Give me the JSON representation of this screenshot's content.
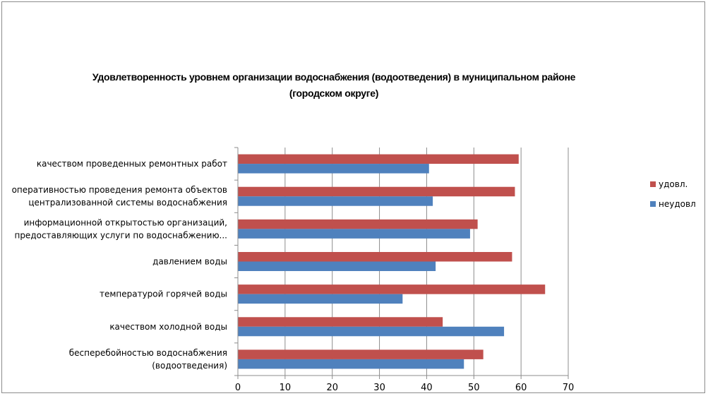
{
  "chart_data": {
    "type": "bar",
    "orientation": "horizontal",
    "title": "Удовлетворенность уровнем организации водоснабжения (водоотведения) в муниципальном районе (городском округе)",
    "title_lines": [
      "Удовлетворенность уровнем организации водоснабжения (водоотведения) в муниципальном районе",
      "(городском округе)"
    ],
    "categories": [
      [
        "качеством  проведенных  ремонтных работ"
      ],
      [
        "оперативностью  проведения  ремонта объектов",
        "централизованной системы водоснабжения"
      ],
      [
        "информационной открытостью организаций,",
        "предоставляющих услуги по водоснабжению..."
      ],
      [
        "давлением  воды"
      ],
      [
        "температурой  горячей  воды"
      ],
      [
        "качеством  холодной воды"
      ],
      [
        "бесперебойностью  водоснабжения",
        "(водоотведения)"
      ]
    ],
    "series": [
      {
        "name": "удовл.",
        "color": "#c0504d",
        "values": [
          59.5,
          58.7,
          50.8,
          58.1,
          65.1,
          43.4,
          52.0
        ]
      },
      {
        "name": "неудовл",
        "color": "#4f81bd",
        "values": [
          40.5,
          41.3,
          49.2,
          41.9,
          34.9,
          56.4,
          47.9
        ]
      }
    ],
    "xlim": [
      0,
      70
    ],
    "xticks": [
      "0",
      "10",
      "20",
      "30",
      "40",
      "50",
      "60",
      "70"
    ],
    "xlabel": "",
    "ylabel": "",
    "grid": true,
    "legend": "right"
  }
}
